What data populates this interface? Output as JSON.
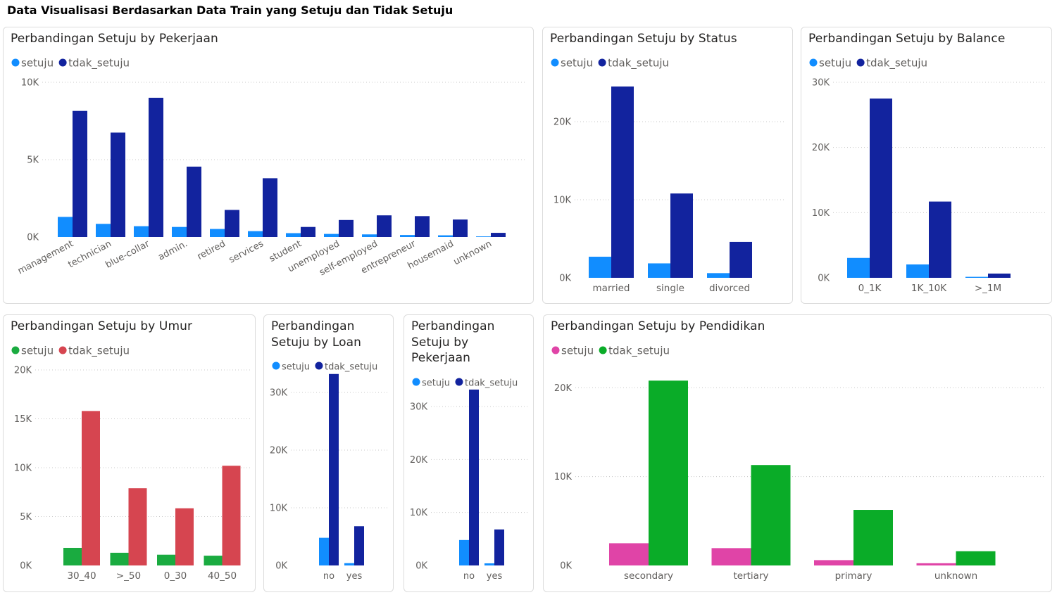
{
  "page": {
    "title": "Data Visualisasi Berdasarkan Data Train yang Setuju dan Tidak Setuju"
  },
  "chart_data": [
    {
      "id": "pekerjaan",
      "type": "bar",
      "title": "Perbandingan Setuju by Pekerjaan",
      "legend_position": "top-left",
      "grid": true,
      "categories": [
        "management",
        "technician",
        "blue-collar",
        "admin.",
        "retired",
        "services",
        "student",
        "unemployed",
        "self-employed",
        "entrepreneur",
        "housemaid",
        "unknown"
      ],
      "series": [
        {
          "name": "setuju",
          "color": "#118dff",
          "values": [
            1300,
            850,
            700,
            650,
            520,
            380,
            250,
            200,
            170,
            130,
            110,
            40
          ]
        },
        {
          "name": "tdak_setuju",
          "color": "#12239e",
          "values": [
            8150,
            6750,
            9000,
            4550,
            1750,
            3800,
            650,
            1100,
            1400,
            1350,
            1130,
            270
          ]
        }
      ],
      "ylim": [
        0,
        10000
      ],
      "yticks": [
        0,
        5000,
        10000
      ],
      "yticklabels": [
        "0K",
        "5K",
        "10K"
      ]
    },
    {
      "id": "status",
      "type": "bar",
      "title": "Perbandingan Setuju by Status",
      "legend_position": "top-left",
      "grid": true,
      "categories": [
        "married",
        "single",
        "divorced"
      ],
      "series": [
        {
          "name": "setuju",
          "color": "#118dff",
          "values": [
            2700,
            1850,
            600
          ]
        },
        {
          "name": "tdak_setuju",
          "color": "#12239e",
          "values": [
            24500,
            10800,
            4600
          ]
        }
      ],
      "ylim": [
        0,
        25000
      ],
      "yticks": [
        0,
        10000,
        20000
      ],
      "yticklabels": [
        "0K",
        "10K",
        "20K"
      ]
    },
    {
      "id": "balance",
      "type": "bar",
      "title": "Perbandingan Setuju by Balance",
      "legend_position": "top-left",
      "grid": true,
      "categories": [
        "0_1K",
        "1K_10K",
        ">_1M"
      ],
      "series": [
        {
          "name": "setuju",
          "color": "#118dff",
          "values": [
            3050,
            2050,
            150
          ]
        },
        {
          "name": "tdak_setuju",
          "color": "#12239e",
          "values": [
            27500,
            11700,
            650
          ]
        }
      ],
      "ylim": [
        0,
        30000
      ],
      "yticks": [
        0,
        10000,
        20000,
        30000
      ],
      "yticklabels": [
        "0K",
        "10K",
        "20K",
        "30K"
      ]
    },
    {
      "id": "umur",
      "type": "bar",
      "title": "Perbandingan Setuju by Umur",
      "legend_position": "top-left",
      "grid": true,
      "categories": [
        "30_40",
        ">_50",
        "0_30",
        "40_50"
      ],
      "series": [
        {
          "name": "setuju",
          "color": "#1aab40",
          "values": [
            1800,
            1300,
            1100,
            1000
          ]
        },
        {
          "name": "tdak_setuju",
          "color": "#d64550",
          "values": [
            15800,
            7900,
            5850,
            10200
          ]
        }
      ],
      "ylim": [
        0,
        20000
      ],
      "yticks": [
        0,
        5000,
        10000,
        15000,
        20000
      ],
      "yticklabels": [
        "0K",
        "5K",
        "10K",
        "15K",
        "20K"
      ]
    },
    {
      "id": "loan",
      "type": "bar",
      "title": "Perbandingan Setuju by Loan",
      "legend_position": "top-left",
      "grid": true,
      "categories": [
        "no",
        "yes"
      ],
      "series": [
        {
          "name": "setuju",
          "color": "#118dff",
          "values": [
            4800,
            400
          ]
        },
        {
          "name": "tdak_setuju",
          "color": "#12239e",
          "values": [
            33200,
            6800
          ]
        }
      ],
      "ylim": [
        0,
        30000
      ],
      "yticks": [
        0,
        10000,
        20000,
        30000
      ],
      "yticklabels": [
        "0K",
        "10K",
        "20K",
        "30K"
      ]
    },
    {
      "id": "pekerjaan2",
      "type": "bar",
      "title": "Perbandingan Setuju by Pekerjaan",
      "legend_position": "top-left",
      "grid": true,
      "categories": [
        "no",
        "yes"
      ],
      "series": [
        {
          "name": "setuju",
          "color": "#118dff",
          "values": [
            4800,
            400
          ]
        },
        {
          "name": "tdak_setuju",
          "color": "#12239e",
          "values": [
            33200,
            6800
          ]
        }
      ],
      "ylim": [
        0,
        30000
      ],
      "yticks": [
        0,
        10000,
        20000,
        30000
      ],
      "yticklabels": [
        "0K",
        "10K",
        "20K",
        "30K"
      ]
    },
    {
      "id": "pendidikan",
      "type": "bar",
      "title": "Perbandingan Setuju by Pendidikan",
      "legend_position": "top-left",
      "grid": true,
      "categories": [
        "secondary",
        "tertiary",
        "primary",
        "unknown"
      ],
      "series": [
        {
          "name": "setuju",
          "color": "#e044a7",
          "values": [
            2500,
            1950,
            600,
            250
          ]
        },
        {
          "name": "tdak_setuju",
          "color": "#0aac28",
          "values": [
            20800,
            11300,
            6250,
            1600
          ]
        }
      ],
      "ylim": [
        0,
        20000
      ],
      "yticks": [
        0,
        10000,
        20000
      ],
      "yticklabels": [
        "0K",
        "10K",
        "20K"
      ]
    }
  ]
}
